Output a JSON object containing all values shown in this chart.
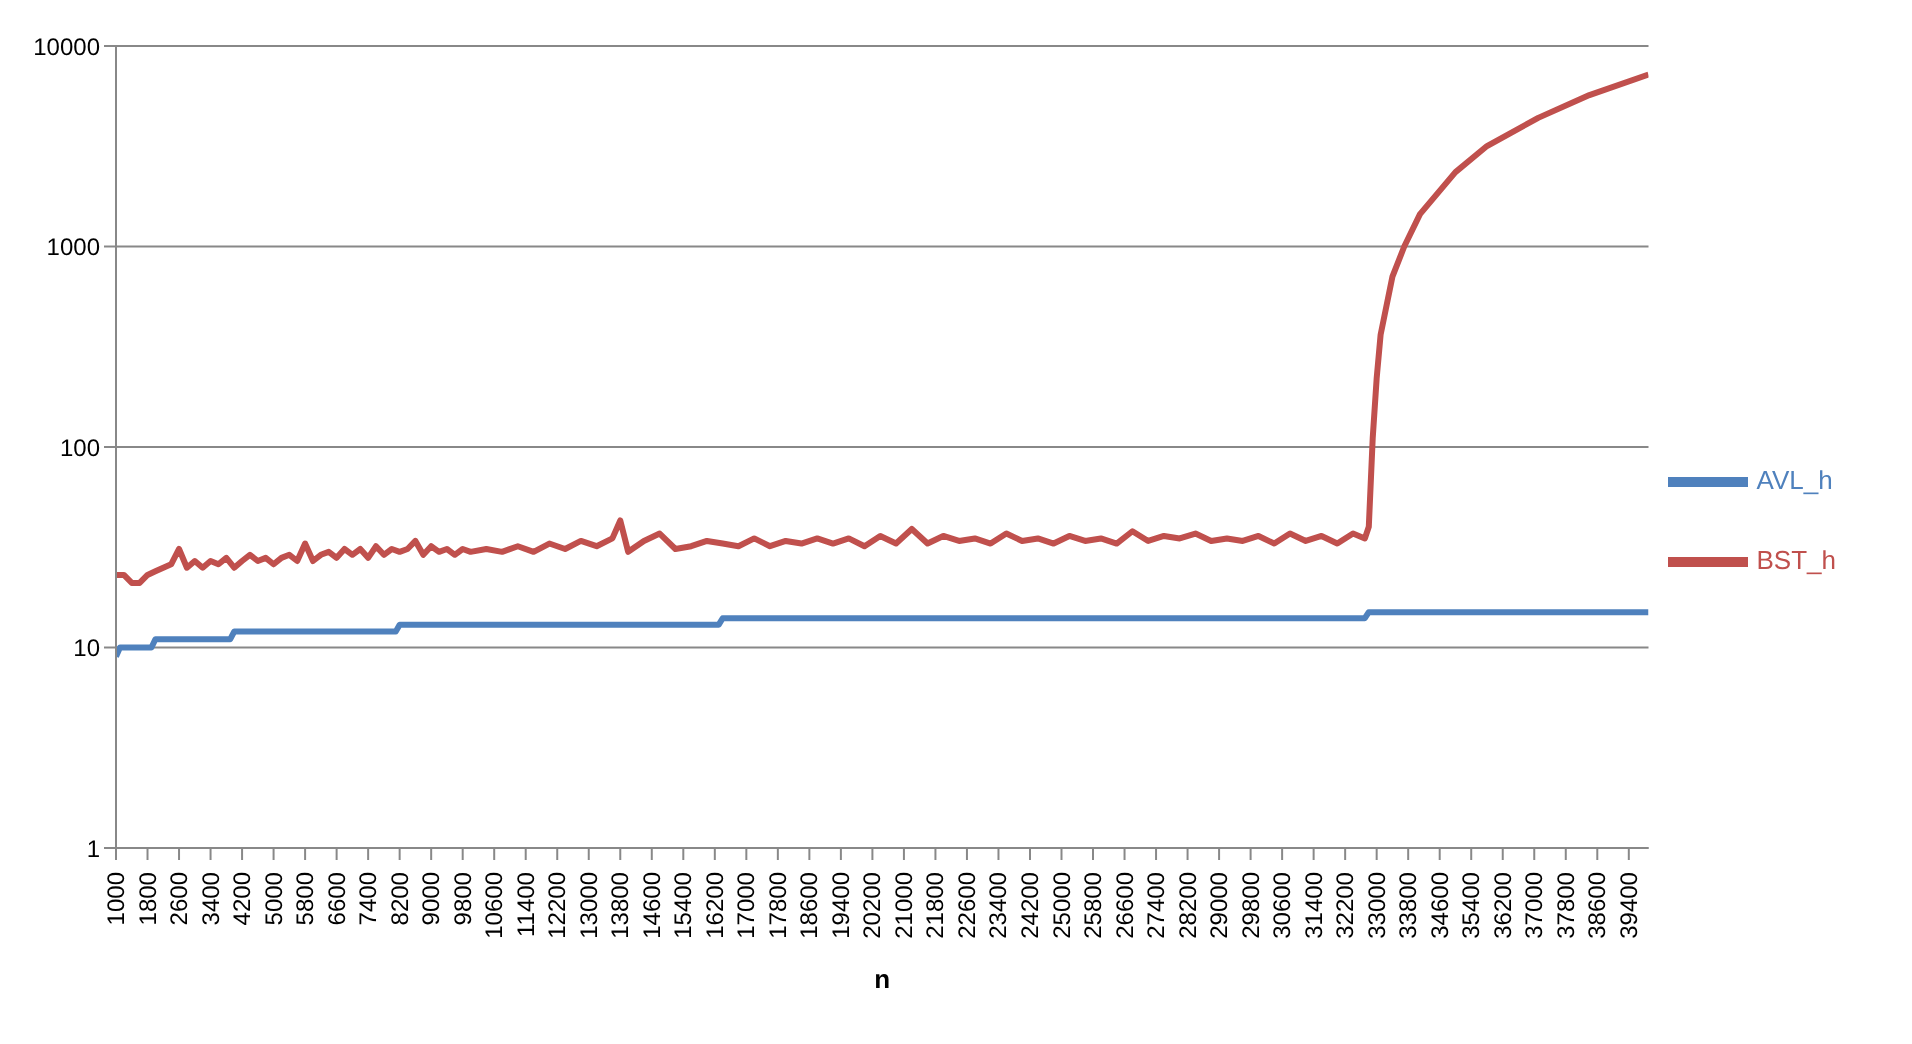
{
  "chart_data": {
    "type": "line",
    "xlabel": "n",
    "log": "y",
    "grid": "y",
    "legend": "right",
    "marker": "none",
    "line_style": "solid",
    "xlim": [
      1000,
      39900
    ],
    "xticks": [
      1000,
      1800,
      2600,
      3400,
      4200,
      5000,
      5800,
      6600,
      7400,
      8200,
      9000,
      9800,
      10600,
      11400,
      12200,
      13000,
      13800,
      14600,
      15400,
      16200,
      17000,
      17800,
      18600,
      19400,
      20200,
      21000,
      21800,
      22600,
      23400,
      24200,
      25000,
      25800,
      26600,
      27400,
      28200,
      29000,
      29800,
      30600,
      31400,
      32200,
      33000,
      33800,
      34600,
      35400,
      36200,
      37000,
      37800,
      38600,
      39400
    ],
    "ylim": [
      1,
      10000
    ],
    "yticks": [
      1,
      10,
      100,
      1000,
      10000
    ],
    "series": [
      {
        "name": "BST_h",
        "color": "#c0504d",
        "x": [
          1000,
          1200,
          1400,
          1600,
          1800,
          2000,
          2200,
          2400,
          2600,
          2800,
          3000,
          3200,
          3400,
          3600,
          3800,
          4000,
          4200,
          4400,
          4600,
          4800,
          5000,
          5200,
          5400,
          5600,
          5800,
          6000,
          6200,
          6400,
          6600,
          6800,
          7000,
          7200,
          7400,
          7600,
          7800,
          8000,
          8200,
          8400,
          8600,
          8800,
          9000,
          9200,
          9400,
          9600,
          9800,
          10000,
          10400,
          10800,
          11200,
          11600,
          12000,
          12400,
          12800,
          13200,
          13600,
          13800,
          14000,
          14400,
          14800,
          15200,
          15600,
          16000,
          16400,
          16800,
          17200,
          17600,
          18000,
          18400,
          18800,
          19200,
          19600,
          20000,
          20400,
          20800,
          21200,
          21600,
          22000,
          22400,
          22800,
          23200,
          23600,
          24000,
          24400,
          24800,
          25200,
          25600,
          26000,
          26400,
          26800,
          27200,
          27600,
          28000,
          28400,
          28800,
          29200,
          29600,
          30000,
          30400,
          30800,
          31200,
          31600,
          32000,
          32400,
          32700,
          32800,
          32900,
          33000,
          33100,
          33400,
          33700,
          34100,
          35000,
          35800,
          37100,
          38400,
          39900
        ],
        "values": [
          23,
          23,
          21,
          21,
          23,
          24,
          25,
          26,
          31,
          25,
          27,
          25,
          27,
          26,
          28,
          25,
          27,
          29,
          27,
          28,
          26,
          28,
          29,
          27,
          33,
          27,
          29,
          30,
          28,
          31,
          29,
          31,
          28,
          32,
          29,
          31,
          30,
          31,
          34,
          29,
          32,
          30,
          31,
          29,
          31,
          30,
          31,
          30,
          32,
          30,
          33,
          31,
          34,
          32,
          35,
          43,
          30,
          34,
          37,
          31,
          32,
          34,
          33,
          32,
          35,
          32,
          34,
          33,
          35,
          33,
          35,
          32,
          36,
          33,
          39,
          33,
          36,
          34,
          35,
          33,
          37,
          34,
          35,
          33,
          36,
          34,
          35,
          33,
          38,
          34,
          36,
          35,
          37,
          34,
          35,
          34,
          36,
          33,
          37,
          34,
          36,
          33,
          37,
          35,
          40,
          111,
          220,
          363,
          707,
          1000,
          1450,
          2350,
          3170,
          4380,
          5690,
          7200
        ]
      },
      {
        "name": "AVL_h",
        "color": "#4f81bd",
        "x": [
          1000,
          1100,
          1900,
          2000,
          3900,
          4000,
          8100,
          8200,
          16300,
          16400,
          32700,
          32800,
          39900
        ],
        "values": [
          9,
          10,
          10,
          11,
          11,
          12,
          12,
          13,
          13,
          14,
          14,
          15,
          15
        ]
      }
    ]
  }
}
